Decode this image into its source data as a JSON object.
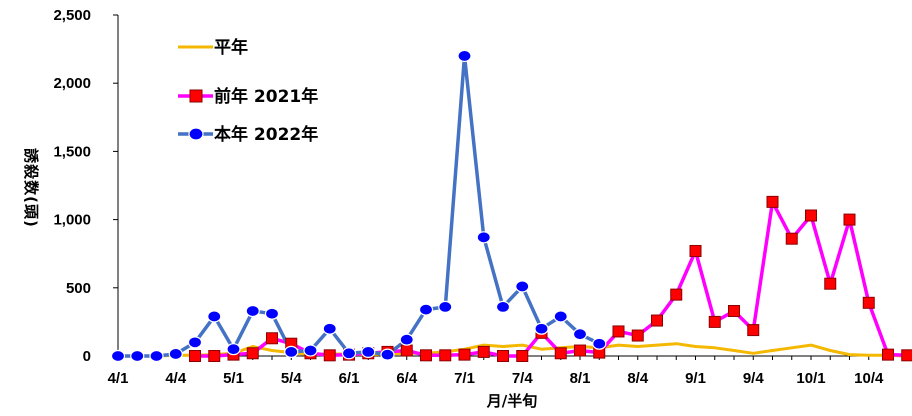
{
  "chart_data": {
    "type": "line",
    "xlabel": "月/半旬",
    "ylabel": "誘殺数(頭)",
    "ylim": [
      0,
      2500
    ],
    "yticks": [
      "0",
      "500",
      "1,000",
      "1,500",
      "2,000",
      "2,500"
    ],
    "yticks_values": [
      0,
      500,
      1000,
      1500,
      2000,
      2500
    ],
    "xtick_labels": [
      "4/1",
      "4/4",
      "5/1",
      "5/4",
      "6/1",
      "6/4",
      "7/1",
      "7/4",
      "8/1",
      "8/4",
      "9/1",
      "9/4",
      "10/1",
      "10/4"
    ],
    "legend_position": "upper-left",
    "grid": false,
    "series": [
      {
        "name": "平年",
        "color": "#F5B800",
        "marker": "none",
        "values": [
          0,
          0,
          0,
          5,
          5,
          10,
          20,
          70,
          40,
          25,
          10,
          15,
          15,
          10,
          15,
          20,
          20,
          30,
          50,
          80,
          70,
          80,
          50,
          60,
          70,
          60,
          80,
          70,
          80,
          90,
          70,
          60,
          40,
          20,
          40,
          60,
          80,
          40,
          10,
          5,
          5,
          0
        ]
      },
      {
        "name": "前年 2021年",
        "color": "#FF00FF",
        "marker": "square",
        "values": [
          null,
          null,
          null,
          null,
          0,
          0,
          10,
          20,
          130,
          90,
          20,
          5,
          10,
          20,
          30,
          40,
          5,
          5,
          10,
          30,
          0,
          0,
          170,
          20,
          40,
          25,
          180,
          150,
          260,
          450,
          770,
          250,
          330,
          190,
          1130,
          860,
          1030,
          530,
          1000,
          390,
          10,
          5,
          50
        ]
      },
      {
        "name": "本年 2022年",
        "color": "#4472C4",
        "marker": "circle",
        "values": [
          0,
          0,
          0,
          15,
          100,
          290,
          50,
          330,
          310,
          30,
          40,
          200,
          20,
          30,
          10,
          120,
          340,
          360,
          2200,
          870,
          360,
          510,
          200,
          290,
          160,
          90
        ]
      }
    ]
  }
}
